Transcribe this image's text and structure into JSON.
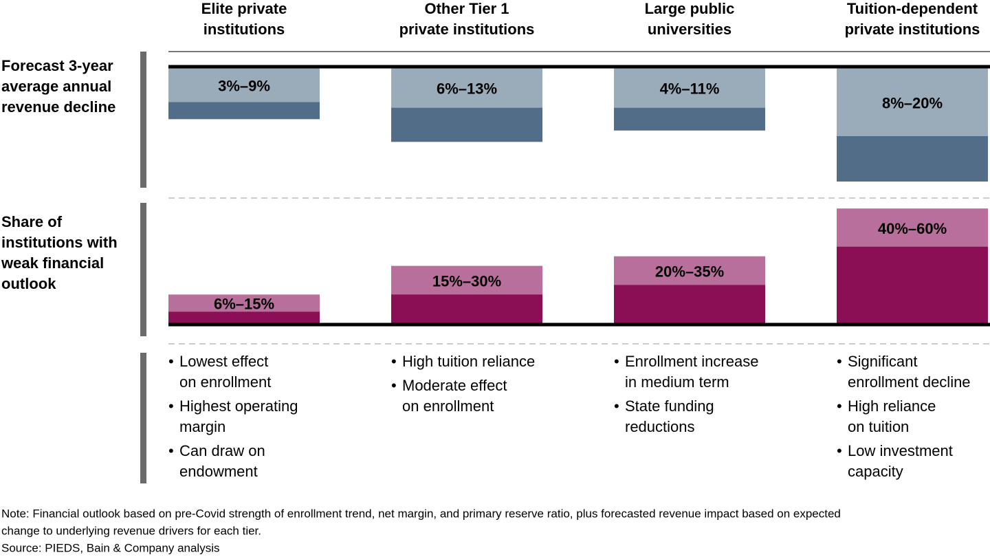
{
  "chart_data": {
    "type": "range-bar",
    "categories": [
      [
        "Elite private",
        "institutions"
      ],
      [
        "Other Tier 1",
        "private institutions"
      ],
      [
        "Large public",
        "universities"
      ],
      [
        "Tuition-dependent",
        "private institutions"
      ]
    ],
    "panels": [
      {
        "label": [
          "Forecast 3-year",
          "average annual",
          "revenue decline"
        ],
        "low": [
          3,
          6,
          4,
          8
        ],
        "high": [
          9,
          13,
          11,
          20
        ],
        "value_labels": [
          "3%–9%",
          "6%–13%",
          "4%–11%",
          "8%–20%"
        ],
        "colors": [
          "#9aabba",
          "#526d87"
        ]
      },
      {
        "label": [
          "Share of",
          "institutions with",
          "weak financial",
          "outlook"
        ],
        "low": [
          6,
          15,
          20,
          40
        ],
        "high": [
          15,
          30,
          35,
          60
        ],
        "value_labels": [
          "6%–15%",
          "15%–30%",
          "20%–35%",
          "40%–60%"
        ],
        "colors": [
          "#b86f9b",
          "#8b0f54"
        ]
      }
    ],
    "drivers": [
      [
        [
          "Lowest effect",
          "on enrollment"
        ],
        [
          "Highest operating",
          "margin"
        ],
        [
          "Can draw on",
          "endowment"
        ]
      ],
      [
        [
          "High tuition reliance"
        ],
        [
          "Moderate effect",
          "on enrollment"
        ]
      ],
      [
        [
          "Enrollment increase",
          "in medium term"
        ],
        [
          "State funding",
          "reductions"
        ]
      ],
      [
        [
          "Significant",
          "enrollment decline"
        ],
        [
          "High reliance",
          "on tuition"
        ],
        [
          "Low investment",
          "capacity"
        ]
      ]
    ],
    "note": [
      "Note: Financial outlook based on pre-Covid strength of enrollment trend, net margin, and primary reserve ratio, plus forecasted revenue impact based on expected",
      "change to underlying revenue drivers for each tier."
    ],
    "source": "Source: PIEDS, Bain & Company analysis"
  }
}
